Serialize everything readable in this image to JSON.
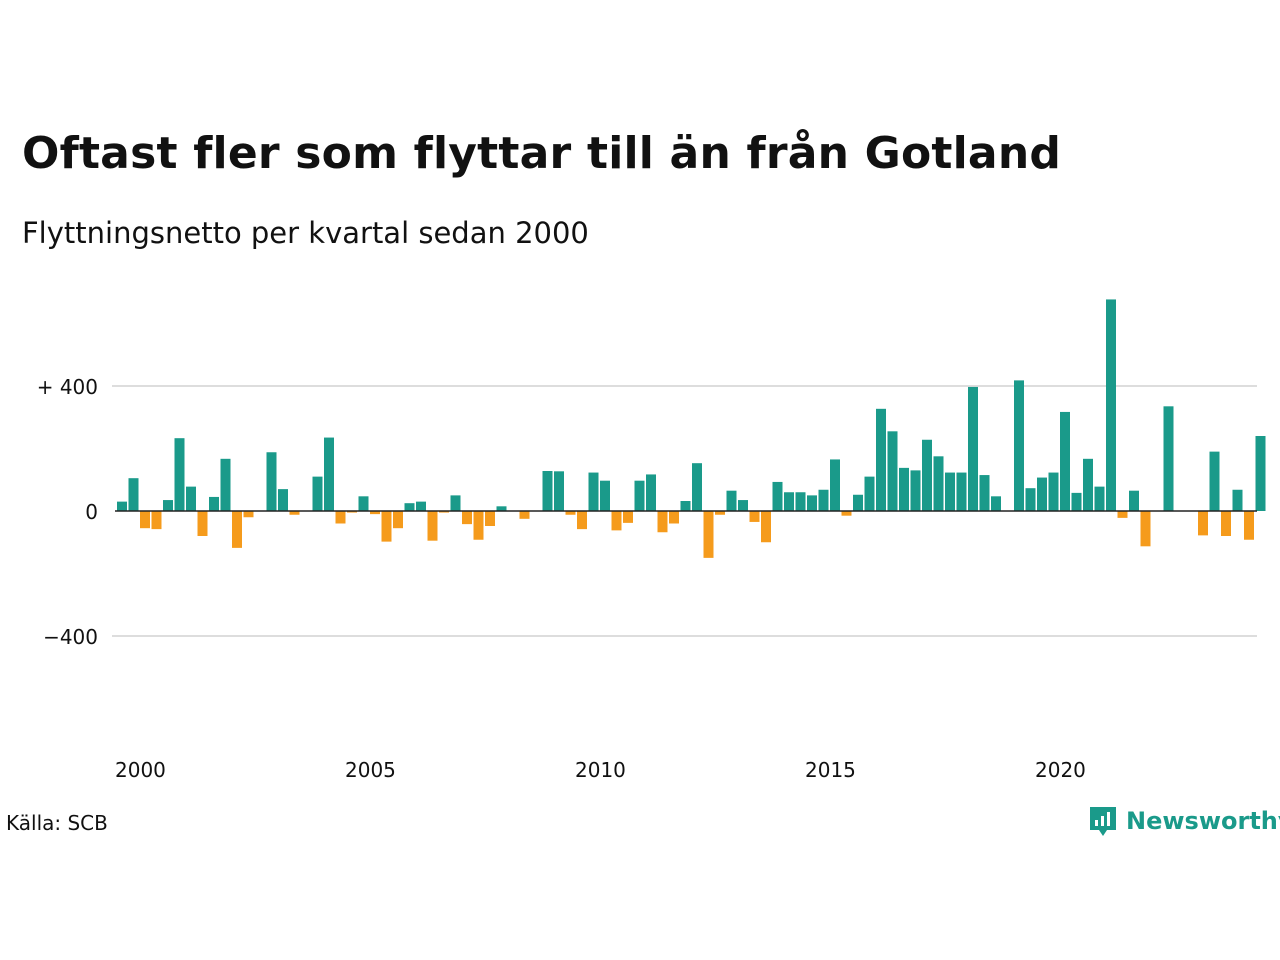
{
  "title": "Oftast fler som flyttar till än från Gotland",
  "subtitle": "Flyttningsnetto per kvartal sedan 2000",
  "source": "Källa: SCB",
  "brand": {
    "name": "Newsworthy",
    "icon": "newsworthy-logo-icon",
    "color": "#1a9a8a"
  },
  "colors": {
    "positive": "#1a9a8a",
    "negative": "#f59b1c",
    "grid": "#dddddd",
    "zero": "#222222"
  },
  "chart_data": {
    "type": "bar",
    "x_start": "2000-Q1",
    "x_ticks": [
      "2000",
      "2005",
      "2010",
      "2015",
      "2020"
    ],
    "y_ticks": [
      {
        "value": 400,
        "label": "+ 400"
      },
      {
        "value": 0,
        "label": "0"
      },
      {
        "value": -400,
        "label": "−400"
      }
    ],
    "ylim": [
      -600,
      680
    ],
    "grid": true,
    "values": [
      30,
      105,
      -55,
      -58,
      35,
      233,
      78,
      -80,
      45,
      167,
      -118,
      -20,
      0,
      188,
      70,
      -12,
      0,
      110,
      235,
      -40,
      -5,
      47,
      -10,
      -98,
      -55,
      25,
      30,
      -95,
      -5,
      50,
      -42,
      -92,
      -48,
      15,
      0,
      -25,
      0,
      128,
      127,
      -12,
      -58,
      123,
      97,
      -62,
      -38,
      97,
      117,
      -68,
      -40,
      32,
      153,
      -150,
      -12,
      65,
      35,
      -35,
      -100,
      93,
      60,
      60,
      50,
      68,
      165,
      -15,
      52,
      110,
      327,
      255,
      138,
      130,
      228,
      175,
      123,
      123,
      397,
      115,
      47,
      0,
      418,
      73,
      107,
      123,
      317,
      58,
      167,
      78,
      677,
      -22,
      65,
      -113,
      0,
      335,
      0,
      0,
      -78,
      190,
      -80,
      68,
      -92,
      240
    ]
  }
}
